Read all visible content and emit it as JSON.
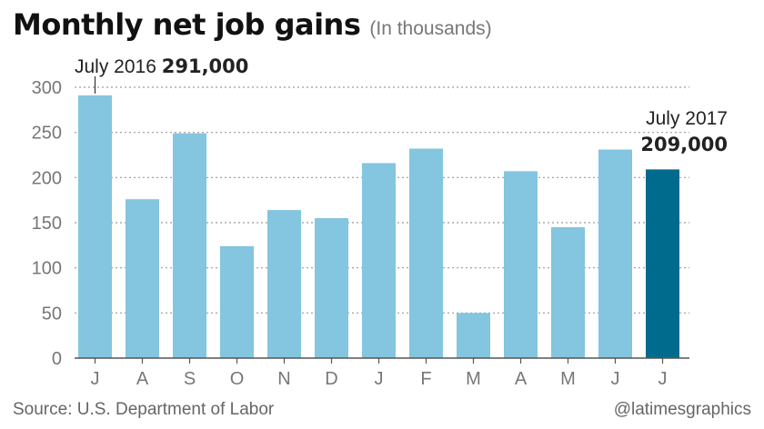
{
  "header": {
    "title": "Monthly net job gains",
    "subtitle": "(In thousands)"
  },
  "footer": {
    "source": "Source: U.S. Department of Labor",
    "credit": "@latimesgraphics"
  },
  "colors": {
    "bar": "#84c5df",
    "highlight_bar": "#006b8c",
    "gridline": "#9a9a9a",
    "axis_text": "#777777"
  },
  "chart_data": {
    "type": "bar",
    "title": "Monthly net job gains",
    "subtitle": "(In thousands)",
    "categories": [
      "J",
      "A",
      "S",
      "O",
      "N",
      "D",
      "J",
      "F",
      "M",
      "A",
      "M",
      "J",
      "J"
    ],
    "values": [
      291,
      176,
      249,
      124,
      164,
      155,
      216,
      232,
      50,
      207,
      145,
      231,
      209
    ],
    "highlight_index": 12,
    "ylim": [
      0,
      300
    ],
    "yticks": [
      "0",
      "50",
      "100",
      "150",
      "200",
      "250",
      "300"
    ],
    "grid": true,
    "annotations": [
      {
        "bar_index": 0,
        "label": "July 2016",
        "value_label": "291,000"
      },
      {
        "bar_index": 12,
        "label": "July 2017",
        "value_label": "209,000"
      }
    ]
  }
}
